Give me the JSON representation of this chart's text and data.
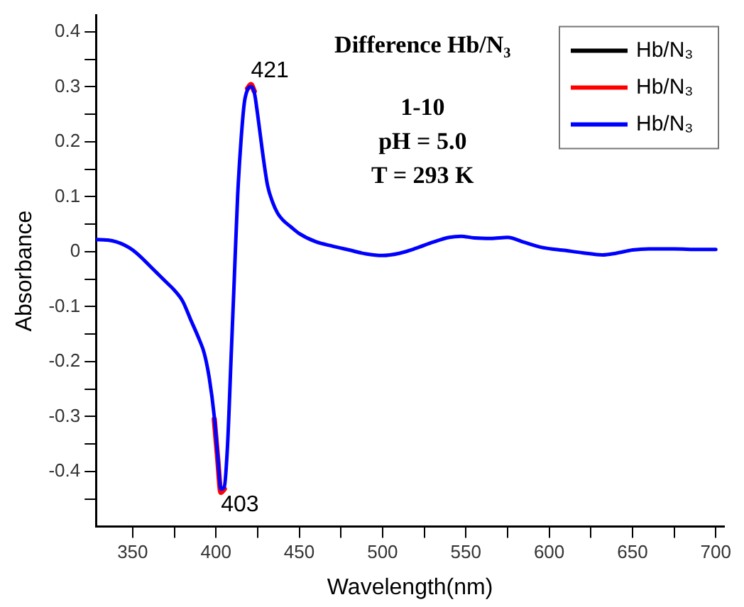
{
  "chart_data": {
    "type": "line",
    "xlabel": "Wavelength(nm)",
    "ylabel": "Absorbance",
    "annotations": [
      "Difference Hb/N₃",
      "1-10",
      "pH = 5.0",
      "T = 293 K",
      {
        "text": "421",
        "x": 421,
        "y": 0.3
      },
      {
        "text": "403",
        "x": 403,
        "y": -0.435
      }
    ],
    "xlim": [
      328,
      705
    ],
    "ylim": [
      -0.5,
      0.43
    ],
    "xticks": [
      350,
      {
        "value": 375,
        "label": null
      },
      400,
      {
        "value": 425,
        "label": null
      },
      450,
      {
        "value": 475,
        "label": null
      },
      500,
      {
        "value": 525,
        "label": null
      },
      550,
      {
        "value": 575,
        "label": null
      },
      600,
      {
        "value": 625,
        "label": null
      },
      650,
      {
        "value": 675,
        "label": null
      },
      700
    ],
    "yticks": [
      {
        "value": -0.45,
        "label": null
      },
      -0.4,
      {
        "value": -0.35,
        "label": null
      },
      -0.3,
      {
        "value": -0.25,
        "label": null
      },
      -0.2,
      {
        "value": -0.15,
        "label": null
      },
      -0.1,
      {
        "value": -0.05,
        "label": null
      },
      0.0,
      {
        "value": 0.05,
        "label": null
      },
      0.1,
      {
        "value": 0.15,
        "label": null
      },
      0.2,
      {
        "value": 0.25,
        "label": null
      },
      0.3,
      {
        "value": 0.35,
        "label": null
      },
      0.4
    ],
    "x": [
      328,
      335,
      340,
      345,
      350,
      355,
      360,
      365,
      370,
      375,
      380,
      385,
      390,
      393,
      396,
      399,
      401,
      403,
      405,
      407,
      409,
      411,
      413,
      415,
      417,
      419,
      421,
      423,
      425,
      428,
      431,
      434,
      437,
      440,
      445,
      450,
      460,
      470,
      480,
      490,
      500,
      510,
      520,
      530,
      540,
      547,
      555,
      565,
      575,
      585,
      595,
      610,
      620,
      632,
      640,
      650,
      660,
      675,
      690,
      700
    ],
    "series": [
      {
        "name": "Hb/N₃",
        "color": "#000000",
        "values": [
          null,
          null,
          null,
          null,
          null,
          null,
          null,
          null,
          null,
          null,
          null,
          null,
          null,
          null,
          null,
          null,
          null,
          null,
          null,
          null,
          null,
          null,
          null,
          null,
          null,
          null,
          null,
          null,
          null,
          null,
          null,
          null,
          null,
          null,
          null,
          null,
          null,
          null,
          null,
          null,
          null,
          null,
          null,
          null,
          null,
          null,
          null,
          null,
          null,
          null,
          null,
          null,
          null,
          null,
          null,
          null,
          null,
          null,
          null,
          null
        ]
      },
      {
        "name": "Hb/N₃",
        "color": "#ff0000",
        "values": [
          null,
          null,
          null,
          null,
          null,
          null,
          null,
          null,
          null,
          null,
          null,
          null,
          null,
          null,
          null,
          -0.305,
          -0.375,
          -0.438,
          -0.432,
          null,
          null,
          null,
          null,
          null,
          null,
          0.297,
          0.304,
          0.292,
          null,
          null,
          null,
          null,
          null,
          null,
          null,
          null,
          null,
          null,
          null,
          null,
          null,
          null,
          null,
          null,
          null,
          null,
          null,
          null,
          null,
          null,
          null,
          null,
          null,
          null,
          null,
          null,
          null,
          null,
          null,
          null
        ]
      },
      {
        "name": "Hb/N₃",
        "color": "#0000ff",
        "values": [
          0.022,
          0.021,
          0.018,
          0.012,
          0.003,
          -0.01,
          -0.025,
          -0.04,
          -0.055,
          -0.07,
          -0.09,
          -0.125,
          -0.16,
          -0.185,
          -0.23,
          -0.3,
          -0.37,
          -0.432,
          -0.428,
          -0.35,
          -0.2,
          -0.05,
          0.1,
          0.2,
          0.27,
          0.295,
          0.3,
          0.29,
          0.25,
          0.18,
          0.12,
          0.09,
          0.07,
          0.058,
          0.045,
          0.033,
          0.018,
          0.01,
          0.003,
          -0.004,
          -0.007,
          -0.003,
          0.006,
          0.017,
          0.026,
          0.028,
          0.025,
          0.024,
          0.026,
          0.017,
          0.008,
          0.002,
          -0.002,
          -0.006,
          -0.003,
          0.003,
          0.005,
          0.005,
          0.004,
          0.004
        ]
      }
    ],
    "legend": "top right",
    "grid": false,
    "marker": "none",
    "line_style": "solid"
  }
}
